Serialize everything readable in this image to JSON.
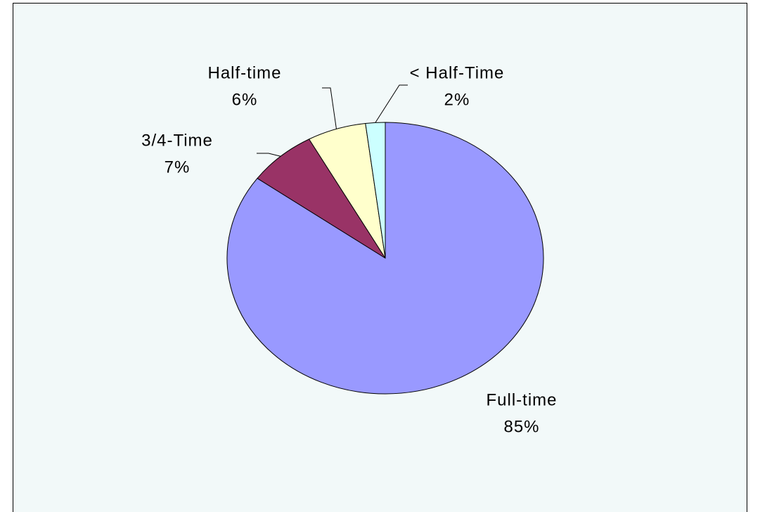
{
  "chart_data": {
    "type": "pie",
    "categories": [
      "Full-time",
      "3/4-Time",
      "Half-time",
      "< Half-Time"
    ],
    "values": [
      85,
      7,
      6,
      2
    ],
    "value_labels": [
      "85%",
      "7%",
      "6%",
      "2%"
    ],
    "colors": [
      "#9999ff",
      "#993366",
      "#ffffcc",
      "#ccffff"
    ]
  }
}
